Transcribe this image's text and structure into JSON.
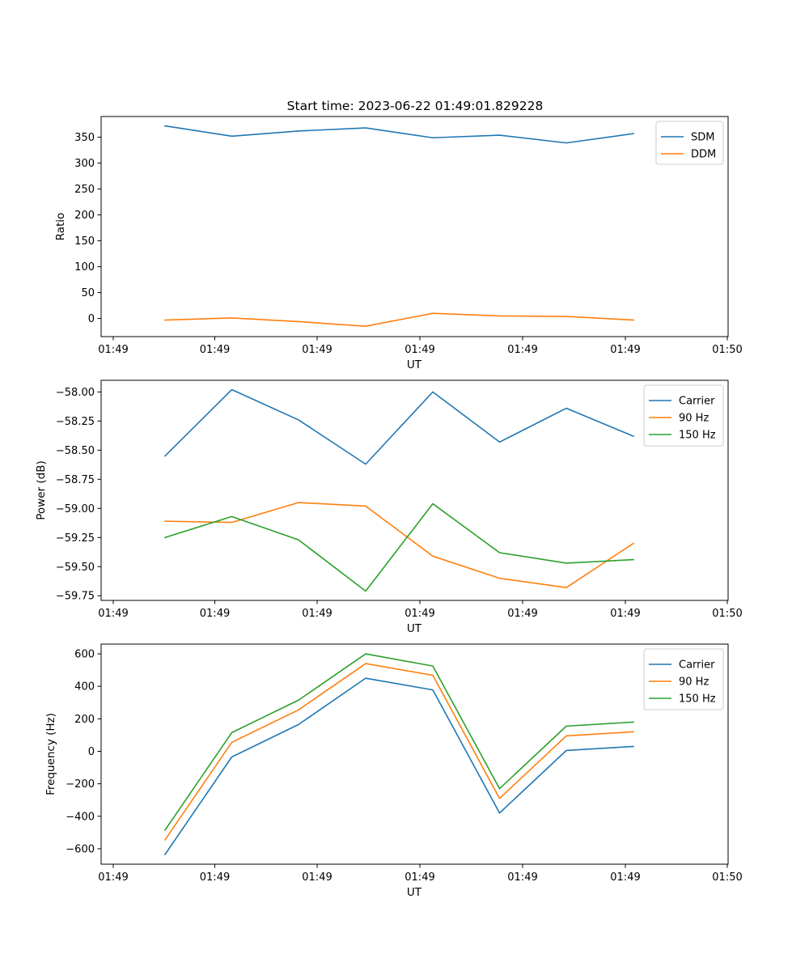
{
  "figure_title": "Start time: 2023-06-22 01:49:01.829228",
  "colors": {
    "blue": "#1f77b4",
    "orange": "#ff7f0e",
    "green": "#2ca02c"
  },
  "chart_data": [
    {
      "type": "line",
      "xlabel": "UT",
      "ylabel": "Ratio",
      "x_tick_labels": [
        "01:49",
        "01:49",
        "01:49",
        "01:49",
        "01:49",
        "01:49",
        "01:50"
      ],
      "ylim": [
        -35,
        390
      ],
      "y_ticks": [
        0,
        50,
        100,
        150,
        200,
        250,
        300,
        350
      ],
      "y_tick_labels": [
        "0",
        "50",
        "100",
        "150",
        "200",
        "250",
        "300",
        "350"
      ],
      "legend_position": "top-right",
      "grid": false,
      "series": [
        {
          "name": "SDM",
          "color": "#1f77b4",
          "values": [
            372,
            352,
            362,
            368,
            349,
            354,
            339,
            357
          ]
        },
        {
          "name": "DDM",
          "color": "#ff7f0e",
          "values": [
            -3,
            1,
            -6,
            -15,
            10,
            5,
            4,
            -3
          ]
        }
      ]
    },
    {
      "type": "line",
      "xlabel": "UT",
      "ylabel": "Power (dB)",
      "x_tick_labels": [
        "01:49",
        "01:49",
        "01:49",
        "01:49",
        "01:49",
        "01:49",
        "01:50"
      ],
      "ylim": [
        -59.79,
        -57.9
      ],
      "y_ticks": [
        -58.0,
        -58.25,
        -58.5,
        -58.75,
        -59.0,
        -59.25,
        -59.5,
        -59.75
      ],
      "y_tick_labels": [
        "−58.00",
        "−58.25",
        "−58.50",
        "−58.75",
        "−59.00",
        "−59.25",
        "−59.50",
        "−59.75"
      ],
      "legend_position": "top-right",
      "grid": false,
      "series": [
        {
          "name": "Carrier",
          "color": "#1f77b4",
          "values": [
            -58.55,
            -57.98,
            -58.24,
            -58.62,
            -58.0,
            -58.43,
            -58.14,
            -58.38
          ]
        },
        {
          "name": "90 Hz",
          "color": "#ff7f0e",
          "values": [
            -59.11,
            -59.12,
            -58.95,
            -58.98,
            -59.41,
            -59.6,
            -59.68,
            -59.3
          ]
        },
        {
          "name": "150 Hz",
          "color": "#2ca02c",
          "values": [
            -59.25,
            -59.07,
            -59.27,
            -59.71,
            -58.96,
            -59.38,
            -59.47,
            -59.44
          ]
        }
      ]
    },
    {
      "type": "line",
      "xlabel": "UT",
      "ylabel": "Frequency (Hz)",
      "x_tick_labels": [
        "01:49",
        "01:49",
        "01:49",
        "01:49",
        "01:49",
        "01:49",
        "01:50"
      ],
      "ylim": [
        -695,
        660
      ],
      "y_ticks": [
        -600,
        -400,
        -200,
        0,
        200,
        400,
        600
      ],
      "y_tick_labels": [
        "−600",
        "−400",
        "−200",
        "0",
        "200",
        "400",
        "600"
      ],
      "legend_position": "top-right",
      "grid": false,
      "series": [
        {
          "name": "Carrier",
          "color": "#1f77b4",
          "values": [
            -635,
            -35,
            165,
            450,
            378,
            -380,
            5,
            30
          ]
        },
        {
          "name": "90 Hz",
          "color": "#ff7f0e",
          "values": [
            -545,
            55,
            255,
            540,
            468,
            -290,
            95,
            120
          ]
        },
        {
          "name": "150 Hz",
          "color": "#2ca02c",
          "values": [
            -485,
            115,
            315,
            600,
            525,
            -230,
            155,
            180
          ]
        }
      ]
    }
  ]
}
